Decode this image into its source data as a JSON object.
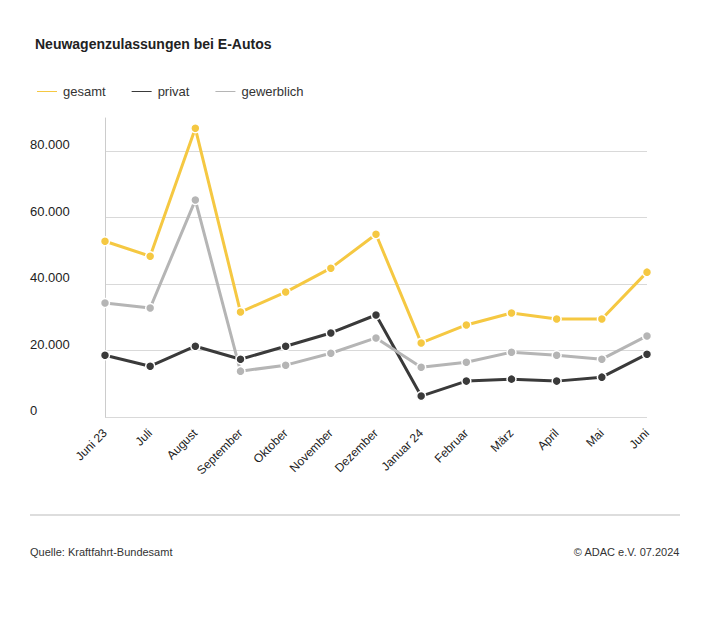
{
  "chart_data": {
    "type": "line",
    "title": "Neuwagenzulassungen bei E-Autos",
    "categories": [
      "Juni 23",
      "Juli",
      "August",
      "September",
      "Oktober",
      "November",
      "Dezember",
      "Januar 24",
      "Februar",
      "März",
      "April",
      "Mai",
      "Juni"
    ],
    "series": [
      {
        "name": "gesamt",
        "color": "#f5c842",
        "values": [
          52900,
          48400,
          86900,
          31600,
          37600,
          44800,
          55000,
          22300,
          27700,
          31300,
          29500,
          29500,
          43600
        ]
      },
      {
        "name": "privat",
        "color": "#3a3a3a",
        "values": [
          18600,
          15300,
          21300,
          17400,
          21300,
          25300,
          30700,
          6300,
          10800,
          11400,
          10800,
          12000,
          18900
        ]
      },
      {
        "name": "gewerblich",
        "color": "#b5b5b5",
        "values": [
          34300,
          32800,
          65300,
          13800,
          15600,
          19200,
          23800,
          15000,
          16500,
          19500,
          18600,
          17400,
          24400
        ]
      }
    ],
    "ylim": [
      0,
      90000
    ],
    "yticks": [
      0,
      {
        "value": 20000,
        "label": "20.000"
      },
      {
        "value": 40000,
        "label": "40.000"
      },
      {
        "value": 60000,
        "label": "60.000"
      },
      {
        "value": 80000,
        "label": "80.000"
      }
    ],
    "grid": true,
    "legend": "top-left",
    "marker": "circle",
    "source": "Quelle: Kraftfahrt-Bundesamt",
    "credit": "© ADAC e.V. 07.2024"
  }
}
